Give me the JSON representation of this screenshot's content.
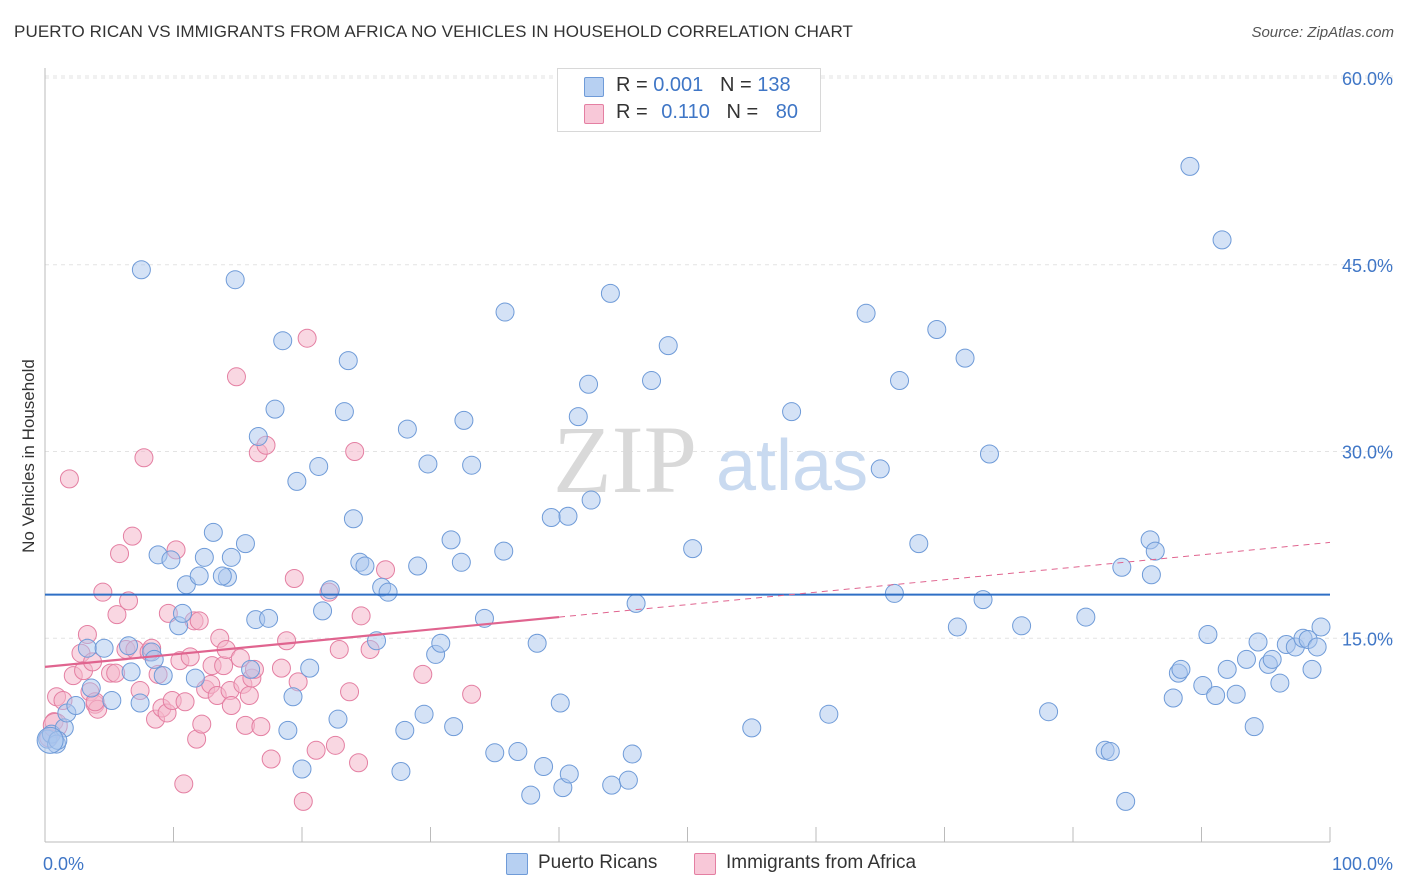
{
  "title": "PUERTO RICAN VS IMMIGRANTS FROM AFRICA NO VEHICLES IN HOUSEHOLD CORRELATION CHART",
  "source": "Source: ZipAtlas.com",
  "watermark": {
    "zip": "ZIP",
    "atlas": "atlas"
  },
  "legend_box": {
    "row1": {
      "r_label": "R = ",
      "r_value": "0.001",
      "n_label": "N = ",
      "n_value": "138",
      "color": "#a9c6ee"
    },
    "row2": {
      "r_label": "R = ",
      "r_value": "0.110",
      "n_label": "N = ",
      "n_value": "80",
      "color": "#f4b6cb"
    }
  },
  "bottom_legend": {
    "series1": "Puerto Ricans",
    "series2": "Immigrants from Africa"
  },
  "colors": {
    "blue_fill": "#a9c6ee",
    "blue_stroke": "#6f9bd8",
    "blue_line": "#2f6fc5",
    "pink_fill": "#f4b6cb",
    "pink_stroke": "#e47fa2",
    "pink_line": "#e0648f",
    "axis_text": "#3f76c6",
    "grid": "#e3e3e3"
  },
  "chart_data": {
    "type": "scatter",
    "title": "PUERTO RICAN VS IMMIGRANTS FROM AFRICA NO VEHICLES IN HOUSEHOLD CORRELATION CHART",
    "xlabel": "",
    "ylabel": "No Vehicles in Household",
    "xlim": [
      0,
      100
    ],
    "ylim": [
      0,
      60
    ],
    "x_tick_labels": [
      "0.0%",
      "100.0%"
    ],
    "y_ticks": [
      15,
      30,
      45,
      60
    ],
    "y_tick_labels": [
      "15.0%",
      "30.0%",
      "45.0%",
      "60.0%"
    ],
    "grid": true,
    "legend_position": "top-center",
    "series": [
      {
        "name": "Puerto Ricans",
        "R": 0.001,
        "N": 138,
        "trend": {
          "x": [
            0,
            100
          ],
          "y": [
            18.5,
            18.5
          ],
          "dashed_from": null
        },
        "points": [
          [
            0.2,
            6.9
          ],
          [
            0.5,
            7.3
          ],
          [
            0.9,
            6.5
          ],
          [
            1.5,
            7.8
          ],
          [
            1.7,
            9.0
          ],
          [
            2.4,
            9.6
          ],
          [
            3.3,
            14.2
          ],
          [
            3.6,
            11.0
          ],
          [
            4.6,
            14.2
          ],
          [
            5.2,
            10.0
          ],
          [
            6.5,
            14.4
          ],
          [
            6.7,
            12.3
          ],
          [
            7.4,
            9.8
          ],
          [
            7.5,
            44.6
          ],
          [
            8.3,
            13.9
          ],
          [
            8.5,
            13.3
          ],
          [
            8.8,
            21.7
          ],
          [
            9.2,
            12.0
          ],
          [
            9.8,
            21.3
          ],
          [
            10.4,
            16.0
          ],
          [
            10.7,
            17.0
          ],
          [
            11.0,
            19.3
          ],
          [
            11.7,
            11.8
          ],
          [
            12.0,
            20.0
          ],
          [
            12.4,
            21.5
          ],
          [
            13.1,
            23.5
          ],
          [
            14.2,
            19.9
          ],
          [
            14.5,
            21.5
          ],
          [
            14.8,
            43.8
          ],
          [
            15.6,
            22.6
          ],
          [
            16.0,
            12.5
          ],
          [
            16.4,
            16.5
          ],
          [
            16.6,
            31.2
          ],
          [
            17.4,
            16.6
          ],
          [
            17.9,
            33.4
          ],
          [
            18.5,
            38.9
          ],
          [
            18.9,
            7.6
          ],
          [
            19.3,
            10.3
          ],
          [
            19.6,
            27.6
          ],
          [
            20.0,
            4.5
          ],
          [
            20.6,
            12.6
          ],
          [
            21.3,
            28.8
          ],
          [
            21.6,
            17.2
          ],
          [
            22.2,
            18.9
          ],
          [
            22.8,
            8.5
          ],
          [
            23.3,
            33.2
          ],
          [
            23.6,
            37.3
          ],
          [
            24.0,
            24.6
          ],
          [
            24.5,
            21.1
          ],
          [
            24.9,
            20.8
          ],
          [
            25.8,
            14.8
          ],
          [
            26.2,
            19.1
          ],
          [
            26.7,
            18.7
          ],
          [
            27.7,
            4.3
          ],
          [
            28.0,
            7.6
          ],
          [
            28.2,
            31.8
          ],
          [
            29.0,
            20.8
          ],
          [
            29.5,
            8.9
          ],
          [
            29.8,
            29.0
          ],
          [
            30.4,
            13.7
          ],
          [
            30.8,
            14.6
          ],
          [
            31.8,
            7.9
          ],
          [
            32.4,
            21.1
          ],
          [
            32.6,
            32.5
          ],
          [
            31.6,
            22.9
          ],
          [
            33.2,
            28.9
          ],
          [
            34.2,
            16.6
          ],
          [
            35.0,
            5.8
          ],
          [
            35.7,
            22.0
          ],
          [
            35.8,
            41.2
          ],
          [
            36.8,
            5.9
          ],
          [
            37.8,
            2.4
          ],
          [
            38.3,
            14.6
          ],
          [
            38.8,
            4.7
          ],
          [
            39.4,
            24.7
          ],
          [
            40.1,
            9.8
          ],
          [
            40.3,
            3.0
          ],
          [
            40.7,
            24.8
          ],
          [
            40.8,
            4.1
          ],
          [
            41.5,
            32.8
          ],
          [
            42.3,
            35.4
          ],
          [
            42.5,
            26.1
          ],
          [
            44.0,
            42.7
          ],
          [
            44.1,
            3.2
          ],
          [
            45.4,
            3.6
          ],
          [
            45.7,
            5.7
          ],
          [
            46.0,
            17.8
          ],
          [
            47.2,
            35.7
          ],
          [
            48.5,
            38.5
          ],
          [
            50.4,
            22.2
          ],
          [
            55.0,
            7.8
          ],
          [
            58.1,
            33.2
          ],
          [
            61.0,
            8.9
          ],
          [
            63.9,
            41.1
          ],
          [
            65.0,
            28.6
          ],
          [
            66.1,
            18.6
          ],
          [
            66.5,
            35.7
          ],
          [
            68.0,
            22.6
          ],
          [
            69.4,
            39.8
          ],
          [
            71.0,
            15.9
          ],
          [
            71.6,
            37.5
          ],
          [
            73.0,
            18.1
          ],
          [
            73.5,
            29.8
          ],
          [
            76.0,
            16.0
          ],
          [
            78.1,
            9.1
          ],
          [
            81.0,
            16.7
          ],
          [
            82.5,
            6.0
          ],
          [
            82.9,
            5.9
          ],
          [
            83.8,
            20.7
          ],
          [
            84.1,
            1.9
          ],
          [
            86.1,
            20.1
          ],
          [
            86.0,
            22.9
          ],
          [
            86.4,
            22.0
          ],
          [
            87.8,
            10.2
          ],
          [
            88.2,
            12.2
          ],
          [
            88.4,
            12.5
          ],
          [
            89.1,
            52.9
          ],
          [
            90.1,
            11.2
          ],
          [
            90.5,
            15.3
          ],
          [
            91.1,
            10.4
          ],
          [
            91.6,
            47.0
          ],
          [
            92.0,
            12.5
          ],
          [
            92.7,
            10.5
          ],
          [
            93.5,
            13.3
          ],
          [
            94.1,
            7.9
          ],
          [
            94.4,
            14.7
          ],
          [
            95.2,
            12.9
          ],
          [
            95.5,
            13.3
          ],
          [
            96.1,
            11.4
          ],
          [
            96.6,
            14.5
          ],
          [
            97.3,
            14.3
          ],
          [
            97.9,
            15.0
          ],
          [
            98.3,
            14.9
          ],
          [
            98.6,
            12.5
          ],
          [
            99.0,
            14.3
          ],
          [
            99.3,
            15.9
          ],
          [
            1.0,
            6.8
          ],
          [
            13.8,
            20.0
          ]
        ]
      },
      {
        "name": "Immigrants from Africa",
        "R": 0.11,
        "N": 80,
        "trend": {
          "x": [
            0,
            100
          ],
          "y": [
            12.7,
            22.7
          ],
          "dashed_from": 40
        },
        "points": [
          [
            0.3,
            7.0
          ],
          [
            0.7,
            8.3
          ],
          [
            0.9,
            10.3
          ],
          [
            1.4,
            10.0
          ],
          [
            1.9,
            27.8
          ],
          [
            2.2,
            12.0
          ],
          [
            2.8,
            13.8
          ],
          [
            3.0,
            12.4
          ],
          [
            3.3,
            15.3
          ],
          [
            3.5,
            10.7
          ],
          [
            3.7,
            13.1
          ],
          [
            3.9,
            9.7
          ],
          [
            4.1,
            9.3
          ],
          [
            4.5,
            18.7
          ],
          [
            5.1,
            12.2
          ],
          [
            5.5,
            12.2
          ],
          [
            5.6,
            16.9
          ],
          [
            5.8,
            21.8
          ],
          [
            6.3,
            14.1
          ],
          [
            6.5,
            18.0
          ],
          [
            6.8,
            23.2
          ],
          [
            7.0,
            14.1
          ],
          [
            7.4,
            10.8
          ],
          [
            7.7,
            29.5
          ],
          [
            8.1,
            13.9
          ],
          [
            8.3,
            14.2
          ],
          [
            8.6,
            8.5
          ],
          [
            8.8,
            12.1
          ],
          [
            9.1,
            9.4
          ],
          [
            9.5,
            9.0
          ],
          [
            9.6,
            17.0
          ],
          [
            9.9,
            10.0
          ],
          [
            10.2,
            22.1
          ],
          [
            10.5,
            13.2
          ],
          [
            10.8,
            3.3
          ],
          [
            10.9,
            9.9
          ],
          [
            11.3,
            13.5
          ],
          [
            11.6,
            16.4
          ],
          [
            11.8,
            6.9
          ],
          [
            12.0,
            16.4
          ],
          [
            12.2,
            8.1
          ],
          [
            12.5,
            10.9
          ],
          [
            12.9,
            11.3
          ],
          [
            13.0,
            12.8
          ],
          [
            13.4,
            10.4
          ],
          [
            13.6,
            15.0
          ],
          [
            13.9,
            12.8
          ],
          [
            14.1,
            14.1
          ],
          [
            14.4,
            10.8
          ],
          [
            14.5,
            9.6
          ],
          [
            14.9,
            36.0
          ],
          [
            15.2,
            13.4
          ],
          [
            15.4,
            11.3
          ],
          [
            15.6,
            8.0
          ],
          [
            15.9,
            10.4
          ],
          [
            16.1,
            11.8
          ],
          [
            16.3,
            12.5
          ],
          [
            16.6,
            29.9
          ],
          [
            16.8,
            7.9
          ],
          [
            17.2,
            30.5
          ],
          [
            17.6,
            5.3
          ],
          [
            18.4,
            12.6
          ],
          [
            18.8,
            14.8
          ],
          [
            19.4,
            19.8
          ],
          [
            19.7,
            11.5
          ],
          [
            20.1,
            1.9
          ],
          [
            20.4,
            39.1
          ],
          [
            21.1,
            6.0
          ],
          [
            22.1,
            18.7
          ],
          [
            22.6,
            6.4
          ],
          [
            22.9,
            14.1
          ],
          [
            23.7,
            10.7
          ],
          [
            24.1,
            30.0
          ],
          [
            24.4,
            5.0
          ],
          [
            24.6,
            16.8
          ],
          [
            25.3,
            14.1
          ],
          [
            26.5,
            20.5
          ],
          [
            29.4,
            12.1
          ],
          [
            33.2,
            10.5
          ],
          [
            3.9,
            9.9
          ]
        ]
      }
    ]
  }
}
